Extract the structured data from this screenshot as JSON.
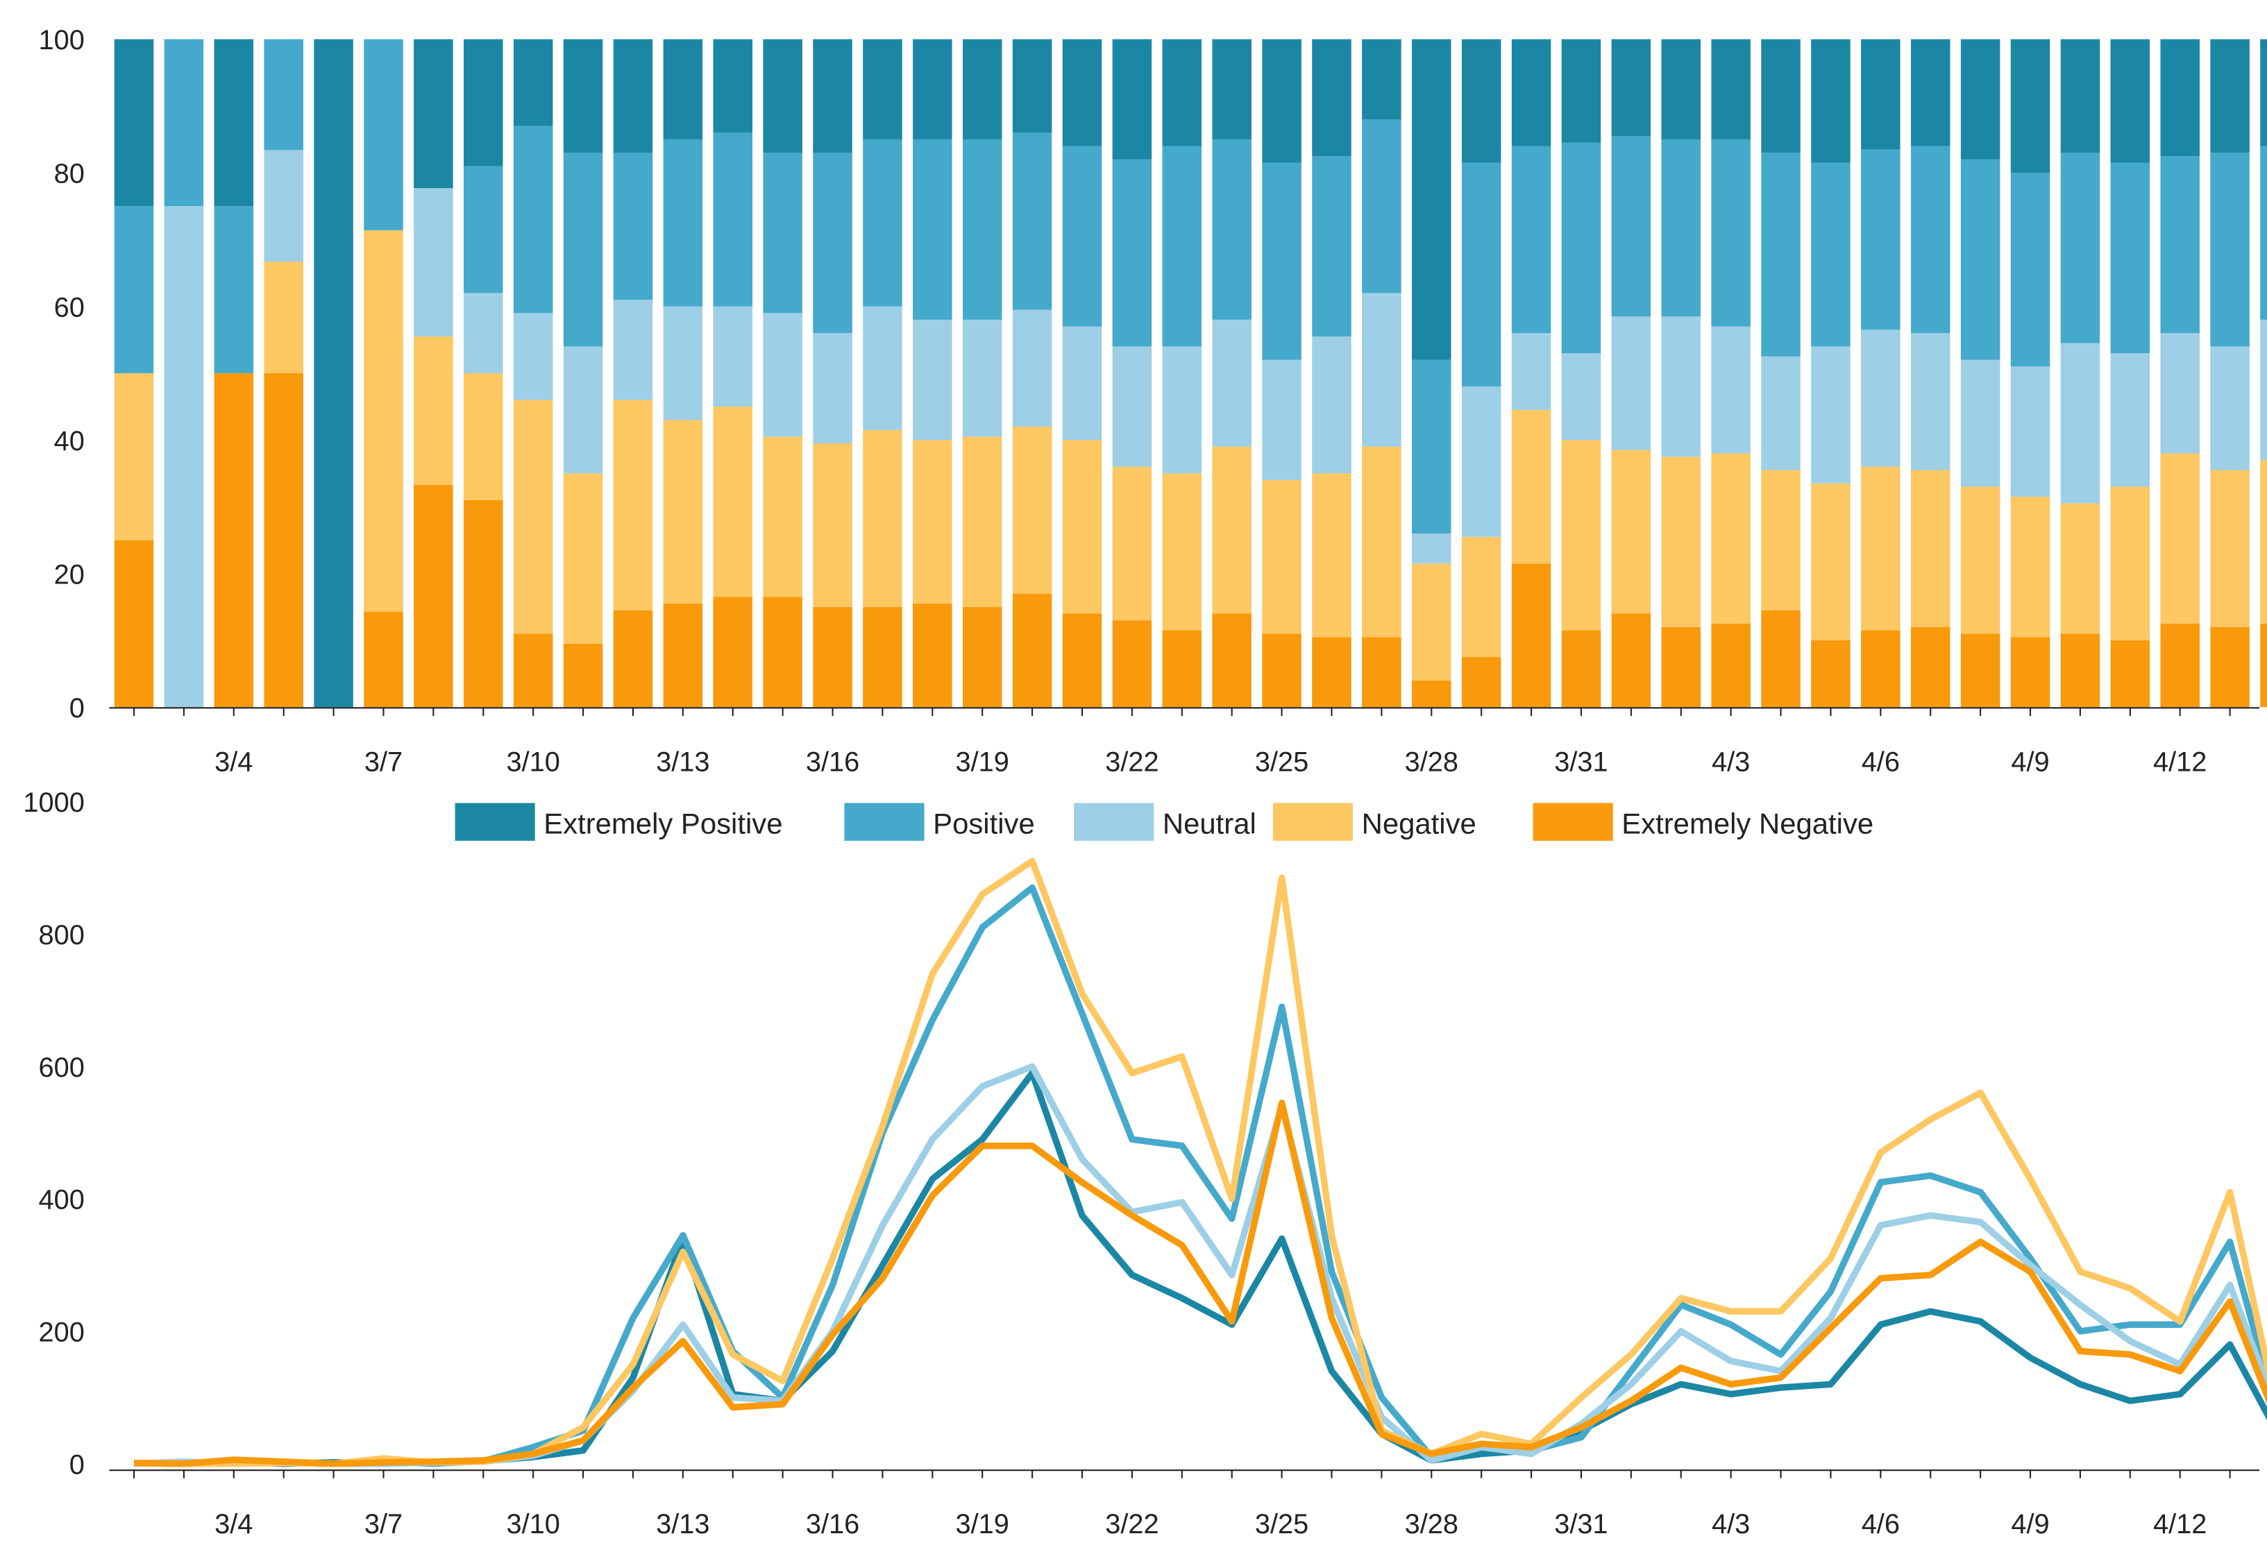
{
  "chart_data": [
    {
      "type": "bar",
      "stacked": true,
      "normalized": true,
      "title": "",
      "xlabel": "",
      "ylabel": "",
      "ylim": [
        0,
        100
      ],
      "yticks": [
        0,
        20,
        40,
        60,
        80,
        100
      ],
      "categories": [
        "3/2",
        "3/3",
        "3/4",
        "3/5",
        "3/6",
        "3/7",
        "3/8",
        "3/9",
        "3/10",
        "3/11",
        "3/12",
        "3/13",
        "3/14",
        "3/15",
        "3/16",
        "3/17",
        "3/18",
        "3/19",
        "3/20",
        "3/21",
        "3/22",
        "3/23",
        "3/24",
        "3/25",
        "3/26",
        "3/27",
        "3/28",
        "3/29",
        "3/30",
        "3/31",
        "4/1",
        "4/2",
        "4/3",
        "4/4",
        "4/5",
        "4/6",
        "4/7",
        "4/8",
        "4/9",
        "4/10",
        "4/11",
        "4/12",
        "4/13",
        "4/14"
      ],
      "xtick_labels": [
        "3/4",
        "3/7",
        "3/10",
        "3/13",
        "3/16",
        "3/19",
        "3/22",
        "3/25",
        "3/28",
        "3/31",
        "4/3",
        "4/6",
        "4/9",
        "4/12"
      ],
      "series": [
        {
          "name": "Extremely Negative",
          "color": "#f89a0c",
          "values": [
            25,
            0,
            50,
            50,
            0,
            14.3,
            33.3,
            31,
            11,
            9.5,
            14.5,
            15.5,
            16.5,
            16.5,
            15,
            15,
            15.5,
            15,
            17,
            14,
            13,
            11.5,
            14,
            11,
            10.5,
            10.5,
            4,
            7.5,
            21.5,
            11.5,
            14,
            12,
            12.5,
            14.5,
            10,
            11.5,
            12,
            11,
            10.5,
            11,
            10,
            12.5,
            12,
            12.5
          ]
        },
        {
          "name": "Negative",
          "color": "#fdc762",
          "values": [
            25,
            0,
            0,
            16.7,
            0,
            57.1,
            22.2,
            19,
            35,
            25.5,
            31.5,
            27.5,
            28.5,
            24,
            24.5,
            26.5,
            24.5,
            25.5,
            25,
            26,
            23,
            23.5,
            25,
            23,
            24.5,
            28.5,
            17.5,
            18,
            23,
            28.5,
            24.5,
            25.5,
            25.5,
            21,
            23.5,
            24.5,
            23.5,
            22,
            21,
            19.5,
            23,
            25.5,
            23.5,
            24.5
          ]
        },
        {
          "name": "Neutral",
          "color": "#9dcfe6",
          "values": [
            0,
            75,
            0,
            16.7,
            0,
            0,
            22.2,
            12,
            13,
            19,
            15,
            17,
            15,
            18.5,
            16.5,
            18.5,
            18,
            17.5,
            17.5,
            17,
            18,
            19,
            19,
            18,
            20.5,
            23,
            4.5,
            22.5,
            11.5,
            13,
            20,
            21,
            19,
            17,
            20.5,
            20.5,
            20.5,
            19,
            19.5,
            24,
            20,
            18,
            18.5,
            21
          ]
        },
        {
          "name": "Positive",
          "color": "#45a9cb",
          "values": [
            25,
            25,
            25,
            16.6,
            0,
            28.6,
            0,
            19,
            28,
            29,
            22,
            25,
            26,
            24,
            27,
            25,
            27,
            27,
            26.5,
            27,
            28,
            30,
            27,
            29.5,
            27,
            26,
            26,
            33.5,
            28,
            31.5,
            27,
            26.5,
            28,
            30.5,
            27.5,
            27,
            28,
            30,
            29,
            28.5,
            28.5,
            26.5,
            29,
            26
          ]
        },
        {
          "name": "Extremely Positive",
          "color": "#1b87a4",
          "values": [
            25,
            0,
            25,
            0,
            100,
            0,
            22.3,
            19,
            13,
            17,
            17,
            15,
            14,
            17,
            17,
            15,
            15,
            15,
            14,
            16,
            18,
            16,
            15,
            18.5,
            17.5,
            12,
            48,
            18.5,
            16,
            15.5,
            14.5,
            15,
            15,
            17,
            18.5,
            16.5,
            16,
            18,
            20,
            17,
            18.5,
            17.5,
            17,
            16
          ]
        }
      ]
    },
    {
      "type": "line",
      "title": "",
      "xlabel": "",
      "ylabel": "",
      "ylim": [
        0,
        1000
      ],
      "yticks": [
        0,
        200,
        400,
        600,
        800,
        1000
      ],
      "legend": "top-center",
      "categories": [
        "3/2",
        "3/3",
        "3/4",
        "3/5",
        "3/6",
        "3/7",
        "3/8",
        "3/9",
        "3/10",
        "3/11",
        "3/12",
        "3/13",
        "3/14",
        "3/15",
        "3/16",
        "3/17",
        "3/18",
        "3/19",
        "3/20",
        "3/21",
        "3/22",
        "3/23",
        "3/24",
        "3/25",
        "3/26",
        "3/27",
        "3/28",
        "3/29",
        "3/30",
        "3/31",
        "4/1",
        "4/2",
        "4/3",
        "4/4",
        "4/5",
        "4/6",
        "4/7",
        "4/8",
        "4/9",
        "4/10",
        "4/11",
        "4/12",
        "4/13",
        "4/14"
      ],
      "xtick_labels": [
        "3/4",
        "3/7",
        "3/10",
        "3/13",
        "3/16",
        "3/19",
        "3/22",
        "3/25",
        "3/28",
        "3/31",
        "4/3",
        "4/6",
        "4/9",
        "4/12"
      ],
      "series": [
        {
          "name": "Extremely Positive",
          "color": "#1b87a4",
          "values": [
            1,
            0,
            3,
            0,
            2,
            0,
            2,
            4,
            10,
            20,
            130,
            340,
            105,
            95,
            170,
            300,
            430,
            490,
            590,
            375,
            285,
            250,
            210,
            340,
            140,
            45,
            5,
            15,
            20,
            50,
            90,
            120,
            105,
            115,
            120,
            210,
            230,
            215,
            160,
            120,
            95,
            105,
            180,
            40
          ]
        },
        {
          "name": "Positive",
          "color": "#45a9cb",
          "values": [
            1,
            1,
            3,
            1,
            0,
            4,
            0,
            4,
            25,
            50,
            220,
            345,
            170,
            100,
            270,
            500,
            670,
            810,
            870,
            680,
            490,
            480,
            370,
            690,
            290,
            100,
            10,
            25,
            20,
            40,
            140,
            240,
            210,
            165,
            260,
            425,
            435,
            410,
            310,
            200,
            210,
            210,
            335,
            60
          ]
        },
        {
          "name": "Neutral",
          "color": "#9dcfe6",
          "values": [
            0,
            3,
            0,
            1,
            0,
            0,
            2,
            3,
            12,
            35,
            110,
            210,
            100,
            95,
            200,
            360,
            490,
            570,
            600,
            460,
            380,
            395,
            285,
            540,
            250,
            70,
            5,
            25,
            15,
            60,
            120,
            200,
            155,
            140,
            220,
            360,
            375,
            365,
            300,
            240,
            185,
            150,
            270,
            70
          ]
        },
        {
          "name": "Negative",
          "color": "#fdc762",
          "values": [
            1,
            0,
            0,
            1,
            0,
            8,
            2,
            3,
            15,
            55,
            150,
            320,
            165,
            125,
            310,
            510,
            740,
            860,
            910,
            710,
            590,
            615,
            400,
            885,
            345,
            50,
            15,
            45,
            30,
            100,
            165,
            250,
            230,
            230,
            310,
            470,
            520,
            560,
            430,
            290,
            265,
            215,
            410,
            60
          ]
        },
        {
          "name": "Extremely Negative",
          "color": "#f89a0c",
          "values": [
            1,
            0,
            6,
            3,
            0,
            2,
            3,
            5,
            15,
            35,
            115,
            185,
            85,
            90,
            195,
            280,
            405,
            480,
            480,
            425,
            375,
            330,
            215,
            545,
            220,
            45,
            15,
            30,
            25,
            55,
            95,
            145,
            120,
            130,
            205,
            280,
            285,
            335,
            290,
            170,
            165,
            140,
            245,
            55
          ]
        }
      ]
    }
  ]
}
